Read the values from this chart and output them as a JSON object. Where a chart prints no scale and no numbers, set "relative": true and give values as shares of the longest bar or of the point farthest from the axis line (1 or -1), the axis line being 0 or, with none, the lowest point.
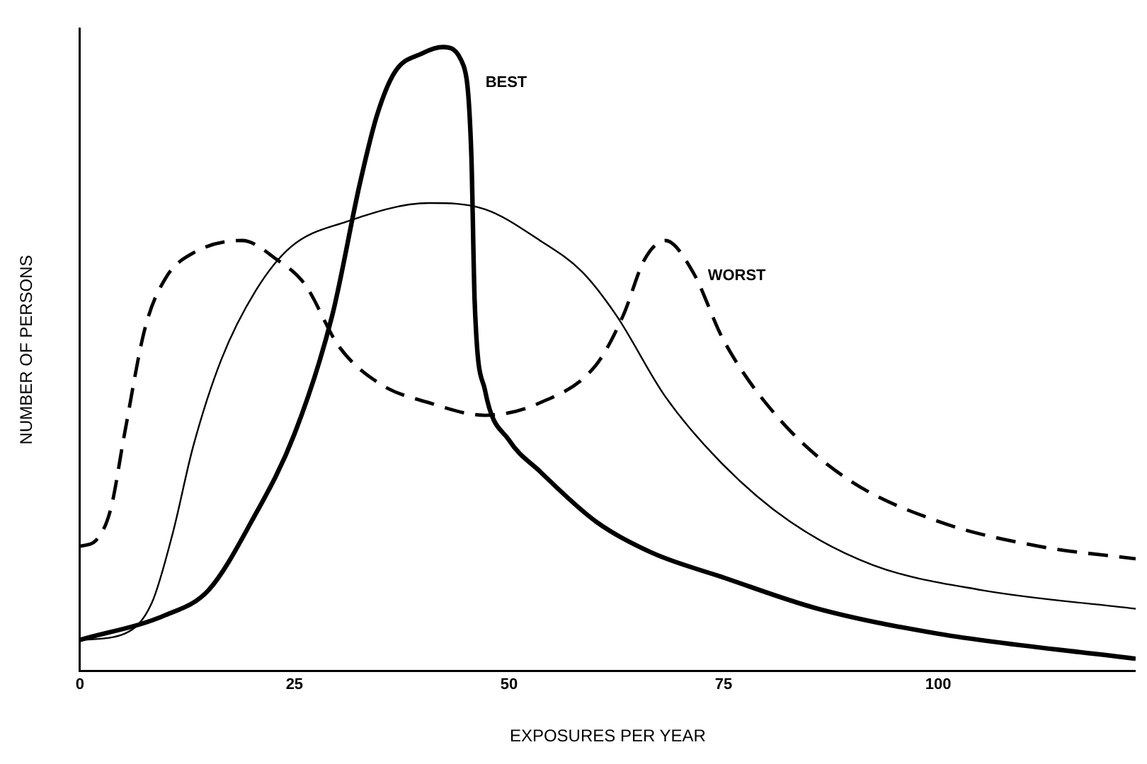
{
  "chart_data": {
    "type": "line",
    "relative": true,
    "xlabel": "EXPOSURES PER YEAR",
    "ylabel": "NUMBER OF PERSONS",
    "xlim": [
      0,
      123
    ],
    "xticks": [
      0,
      25,
      50,
      75,
      100
    ],
    "grid": false,
    "legend": false,
    "marker": "none",
    "series": [
      {
        "name": "BEST",
        "color": "#000000",
        "line_style": "solid",
        "x": [
          0,
          10,
          15,
          20,
          25,
          29.4,
          32.6,
          34.6,
          36.7,
          39.9,
          42.3,
          44.7,
          45.6,
          46,
          47.2,
          50,
          53.6,
          60.1,
          66.6,
          75,
          86,
          100,
          123
        ],
        "values": [
          0.05,
          0.09,
          0.13,
          0.24,
          0.38,
          0.57,
          0.78,
          0.89,
          0.96,
          0.99,
          1,
          0.97,
          0.83,
          0.59,
          0.45,
          0.37,
          0.32,
          0.24,
          0.19,
          0.15,
          0.1,
          0.06,
          0.02
        ]
      },
      {
        "color": "#000000",
        "line_style": "solid",
        "x": [
          0,
          5.2,
          8.4,
          10.8,
          13.2,
          16.5,
          20.5,
          24.6,
          31,
          40.7,
          47.2,
          53.6,
          58.5,
          62.5,
          68.2,
          75,
          82.7,
          92.4,
          105,
          123
        ],
        "values": [
          0.05,
          0.06,
          0.11,
          0.22,
          0.36,
          0.5,
          0.61,
          0.68,
          0.72,
          0.75,
          0.74,
          0.69,
          0.64,
          0.57,
          0.44,
          0.33,
          0.24,
          0.17,
          0.13,
          0.1
        ]
      },
      {
        "name": "WORST",
        "color": "#000000",
        "line_style": "dashed",
        "x": [
          0,
          1.9,
          3.6,
          5.2,
          7.6,
          10,
          13.2,
          18.9,
          22.9,
          26.2,
          30.2,
          35,
          40.7,
          47.2,
          53.6,
          60.1,
          63.3,
          65.8,
          68.2,
          71.4,
          75,
          81.1,
          89.2,
          100,
          111.8,
          123
        ],
        "values": [
          0.2,
          0.21,
          0.26,
          0.38,
          0.55,
          0.63,
          0.67,
          0.69,
          0.66,
          0.62,
          0.52,
          0.46,
          0.43,
          0.41,
          0.43,
          0.49,
          0.57,
          0.66,
          0.69,
          0.64,
          0.53,
          0.41,
          0.31,
          0.24,
          0.2,
          0.18
        ]
      }
    ]
  }
}
